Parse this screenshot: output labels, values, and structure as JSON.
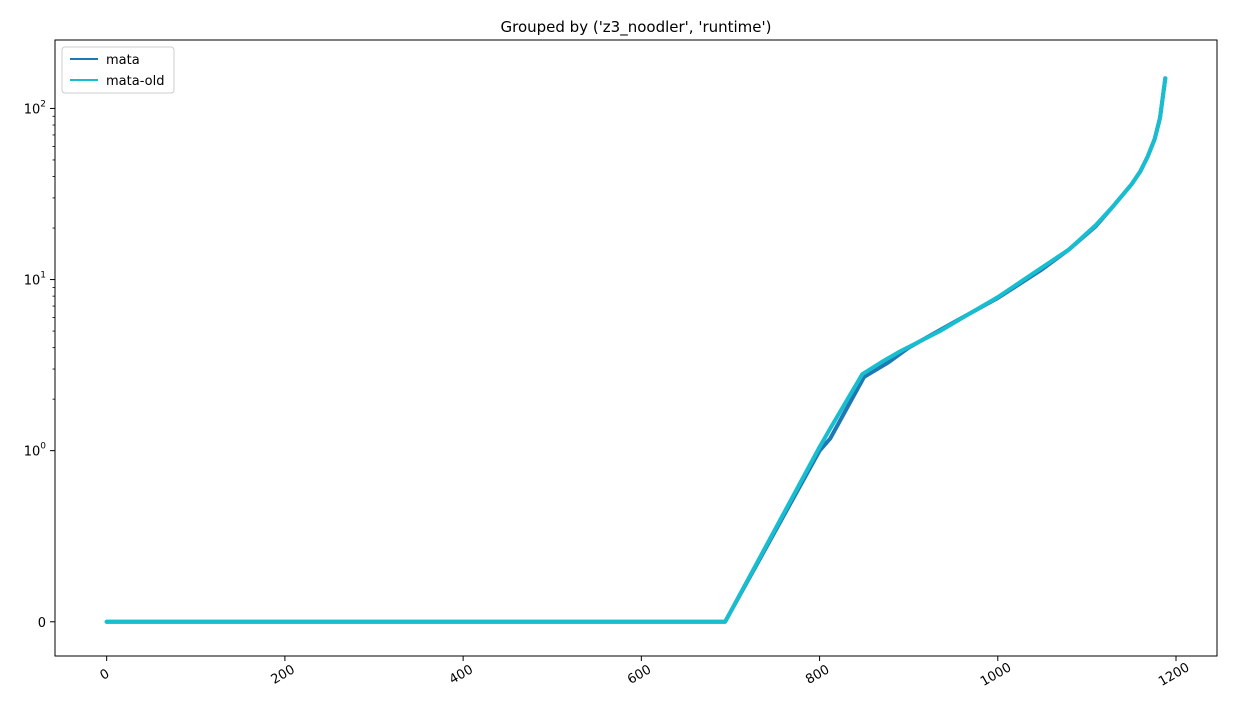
{
  "chart_data": {
    "type": "line",
    "title": "Grouped by ('z3_noodler', 'runtime')",
    "xlabel": "",
    "ylabel": "",
    "xlim": [
      -58,
      1246
    ],
    "y_scale": "symlog",
    "y_linthresh": 1,
    "x_ticks": [
      0,
      200,
      400,
      600,
      800,
      1000,
      1200
    ],
    "x_tick_labels": [
      "0",
      "200",
      "400",
      "600",
      "800",
      "1000",
      "1200"
    ],
    "x_tick_rotation_deg": 30,
    "y_ticks": [
      0,
      1,
      10,
      100
    ],
    "y_tick_labels": [
      {
        "base": "0",
        "exp": ""
      },
      {
        "base": "10",
        "exp": "0"
      },
      {
        "base": "10",
        "exp": "1"
      },
      {
        "base": "10",
        "exp": "2"
      }
    ],
    "grid": false,
    "legend": {
      "placement": "top-left",
      "entries": [
        "mata",
        "mata-old"
      ]
    },
    "series": [
      {
        "name": "mata",
        "color": "#1f77b4",
        "x": [
          0,
          694,
          800,
          812,
          850,
          878,
          900,
          950,
          1000,
          1050,
          1080,
          1110,
          1130,
          1150,
          1160,
          1168,
          1176,
          1182,
          1188
        ],
        "y": [
          0,
          0,
          1.0,
          1.18,
          2.7,
          3.3,
          4.0,
          5.6,
          7.8,
          11.5,
          15.0,
          20.5,
          27.0,
          36.0,
          43.0,
          52.0,
          66.0,
          88.0,
          150.0
        ]
      },
      {
        "name": "mata-old",
        "color": "#17becf",
        "x": [
          0,
          694,
          800,
          812,
          848,
          870,
          890,
          935,
          970,
          1000,
          1050,
          1080,
          1110,
          1130,
          1150,
          1160,
          1168,
          1176,
          1182,
          1188
        ],
        "y": [
          0,
          0,
          1.05,
          1.35,
          2.8,
          3.3,
          3.8,
          5.0,
          6.4,
          7.9,
          11.8,
          15.0,
          20.8,
          27.0,
          36.0,
          43.0,
          52.0,
          66.0,
          88.0,
          150.0
        ]
      }
    ]
  }
}
